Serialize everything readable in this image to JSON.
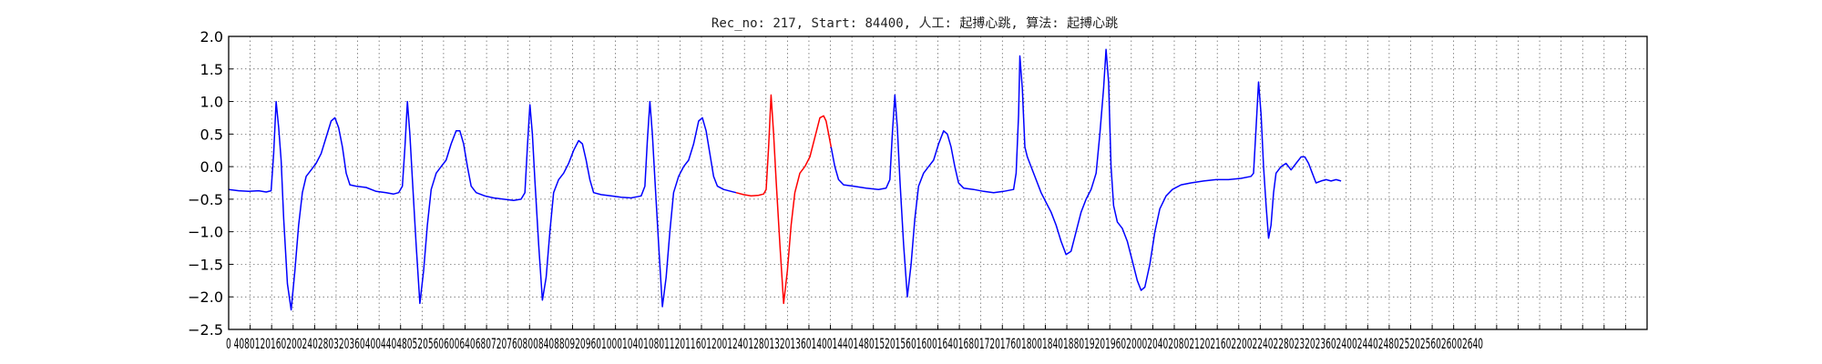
{
  "chart_data": {
    "type": "line",
    "title": "Rec_no: 217, Start: 84400, 人工: 起搏心跳, 算法: 起搏心跳",
    "xlabel": "",
    "ylabel": "",
    "xlim": [
      0,
      1000
    ],
    "ylim": [
      -2.5,
      2.0
    ],
    "grid": true,
    "y_ticks": [
      2.0,
      1.5,
      1.0,
      0.5,
      0.0,
      -0.5,
      -1.0,
      -1.5,
      -2.0,
      -2.5
    ],
    "y_tick_labels": [
      "2.0",
      "1.5",
      "1.0",
      "0.5",
      "0.0",
      "−0.5",
      "−1.0",
      "−1.5",
      "−2.0",
      "−2.5"
    ],
    "x_tick_labels_text": "0 4080120160200240280320360400440480520560600640680720760800840880920960100010401080112011601200124012801320136014001440148015201560160016401680172017601800184018801920196020002040208021202160220022402280232023602400244024802520256026002640",
    "x_tick_count": 67,
    "x_tick_step": 40,
    "series": [
      {
        "color": "#0000ff",
        "segment": "before",
        "points": [
          [
            0,
            -0.35
          ],
          [
            8,
            -0.37
          ],
          [
            16,
            -0.38
          ],
          [
            24,
            -0.37
          ],
          [
            30,
            -0.39
          ],
          [
            34,
            -0.37
          ],
          [
            36,
            0.2
          ],
          [
            38,
            1.0
          ],
          [
            40,
            0.6
          ],
          [
            42,
            0.1
          ],
          [
            44,
            -0.8
          ],
          [
            47,
            -1.8
          ],
          [
            50,
            -2.2
          ],
          [
            53,
            -1.6
          ],
          [
            56,
            -0.9
          ],
          [
            59,
            -0.4
          ],
          [
            62,
            -0.15
          ],
          [
            66,
            -0.05
          ],
          [
            70,
            0.05
          ],
          [
            74,
            0.2
          ],
          [
            78,
            0.45
          ],
          [
            82,
            0.7
          ],
          [
            85,
            0.75
          ],
          [
            88,
            0.6
          ],
          [
            91,
            0.3
          ],
          [
            94,
            -0.1
          ],
          [
            97,
            -0.28
          ],
          [
            102,
            -0.3
          ],
          [
            110,
            -0.32
          ],
          [
            118,
            -0.38
          ],
          [
            126,
            -0.4
          ],
          [
            132,
            -0.42
          ],
          [
            136,
            -0.4
          ],
          [
            139,
            -0.3
          ],
          [
            141,
            0.3
          ],
          [
            143,
            1.0
          ],
          [
            145,
            0.5
          ],
          [
            147,
            -0.2
          ],
          [
            150,
            -1.2
          ],
          [
            153,
            -2.1
          ],
          [
            156,
            -1.6
          ],
          [
            159,
            -0.9
          ],
          [
            162,
            -0.35
          ],
          [
            166,
            -0.1
          ],
          [
            170,
            0.0
          ],
          [
            174,
            0.1
          ],
          [
            178,
            0.35
          ],
          [
            182,
            0.55
          ],
          [
            185,
            0.55
          ],
          [
            188,
            0.35
          ],
          [
            191,
            0.0
          ],
          [
            194,
            -0.3
          ],
          [
            198,
            -0.4
          ],
          [
            205,
            -0.45
          ],
          [
            212,
            -0.48
          ],
          [
            220,
            -0.5
          ],
          [
            228,
            -0.52
          ],
          [
            234,
            -0.5
          ],
          [
            237,
            -0.4
          ],
          [
            239,
            0.3
          ],
          [
            241,
            0.95
          ],
          [
            243,
            0.5
          ],
          [
            245,
            -0.2
          ],
          [
            248,
            -1.2
          ],
          [
            251,
            -2.05
          ],
          [
            254,
            -1.7
          ],
          [
            257,
            -1.0
          ],
          [
            260,
            -0.4
          ],
          [
            264,
            -0.2
          ],
          [
            268,
            -0.1
          ],
          [
            272,
            0.05
          ],
          [
            276,
            0.25
          ],
          [
            280,
            0.4
          ],
          [
            283,
            0.35
          ],
          [
            286,
            0.1
          ],
          [
            289,
            -0.2
          ],
          [
            292,
            -0.4
          ],
          [
            298,
            -0.43
          ],
          [
            306,
            -0.45
          ],
          [
            314,
            -0.47
          ],
          [
            322,
            -0.48
          ],
          [
            330,
            -0.45
          ],
          [
            333,
            -0.3
          ],
          [
            335,
            0.4
          ],
          [
            337,
            1.0
          ],
          [
            339,
            0.5
          ],
          [
            341,
            -0.2
          ],
          [
            344,
            -1.2
          ],
          [
            347,
            -2.15
          ],
          [
            350,
            -1.7
          ],
          [
            353,
            -1.0
          ],
          [
            356,
            -0.4
          ],
          [
            360,
            -0.15
          ],
          [
            364,
            0.0
          ],
          [
            368,
            0.1
          ],
          [
            372,
            0.35
          ],
          [
            376,
            0.7
          ],
          [
            379,
            0.75
          ],
          [
            382,
            0.55
          ],
          [
            385,
            0.2
          ],
          [
            388,
            -0.15
          ],
          [
            391,
            -0.3
          ],
          [
            396,
            -0.35
          ],
          [
            402,
            -0.38
          ],
          [
            406,
            -0.4
          ]
        ]
      },
      {
        "color": "#ff0000",
        "segment": "annotated_beat",
        "points": [
          [
            406,
            -0.4
          ],
          [
            412,
            -0.43
          ],
          [
            418,
            -0.45
          ],
          [
            424,
            -0.44
          ],
          [
            428,
            -0.42
          ],
          [
            430,
            -0.35
          ],
          [
            432,
            0.3
          ],
          [
            434,
            1.1
          ],
          [
            436,
            0.5
          ],
          [
            438,
            -0.2
          ],
          [
            441,
            -1.2
          ],
          [
            444,
            -2.1
          ],
          [
            447,
            -1.6
          ],
          [
            450,
            -0.9
          ],
          [
            453,
            -0.4
          ],
          [
            457,
            -0.1
          ],
          [
            461,
            0.0
          ],
          [
            465,
            0.15
          ],
          [
            469,
            0.45
          ],
          [
            473,
            0.75
          ],
          [
            476,
            0.78
          ],
          [
            478,
            0.7
          ],
          [
            480,
            0.5
          ],
          [
            482,
            0.3
          ]
        ]
      },
      {
        "color": "#0000ff",
        "segment": "after",
        "points": [
          [
            482,
            0.3
          ],
          [
            485,
            0.0
          ],
          [
            488,
            -0.2
          ],
          [
            492,
            -0.28
          ],
          [
            500,
            -0.3
          ],
          [
            510,
            -0.33
          ],
          [
            520,
            -0.35
          ],
          [
            526,
            -0.33
          ],
          [
            529,
            -0.2
          ],
          [
            531,
            0.5
          ],
          [
            533,
            1.1
          ],
          [
            535,
            0.6
          ],
          [
            537,
            -0.2
          ],
          [
            540,
            -1.2
          ],
          [
            543,
            -2.0
          ],
          [
            546,
            -1.5
          ],
          [
            549,
            -0.8
          ],
          [
            552,
            -0.3
          ],
          [
            556,
            -0.1
          ],
          [
            560,
            0.0
          ],
          [
            564,
            0.1
          ],
          [
            568,
            0.35
          ],
          [
            572,
            0.55
          ],
          [
            575,
            0.5
          ],
          [
            578,
            0.3
          ],
          [
            581,
            0.0
          ],
          [
            584,
            -0.25
          ],
          [
            588,
            -0.33
          ],
          [
            596,
            -0.35
          ],
          [
            604,
            -0.38
          ],
          [
            612,
            -0.4
          ],
          [
            620,
            -0.38
          ],
          [
            628,
            -0.35
          ],
          [
            630,
            -0.1
          ],
          [
            632,
            0.8
          ],
          [
            633,
            1.7
          ],
          [
            635,
            1.2
          ],
          [
            637,
            0.3
          ],
          [
            639,
            0.15
          ],
          [
            642,
            0.0
          ],
          [
            646,
            -0.2
          ],
          [
            650,
            -0.4
          ],
          [
            654,
            -0.55
          ],
          [
            658,
            -0.7
          ],
          [
            662,
            -0.9
          ],
          [
            666,
            -1.15
          ],
          [
            670,
            -1.35
          ],
          [
            674,
            -1.3
          ],
          [
            678,
            -1.0
          ],
          [
            682,
            -0.7
          ],
          [
            686,
            -0.5
          ],
          [
            690,
            -0.35
          ],
          [
            694,
            -0.1
          ],
          [
            697,
            0.5
          ],
          [
            700,
            1.2
          ],
          [
            702,
            1.8
          ],
          [
            704,
            1.3
          ],
          [
            706,
            0.0
          ],
          [
            708,
            -0.6
          ],
          [
            711,
            -0.85
          ],
          [
            715,
            -0.95
          ],
          [
            719,
            -1.15
          ],
          [
            723,
            -1.45
          ],
          [
            727,
            -1.75
          ],
          [
            730,
            -1.9
          ],
          [
            733,
            -1.85
          ],
          [
            737,
            -1.5
          ],
          [
            741,
            -1.0
          ],
          [
            745,
            -0.65
          ],
          [
            750,
            -0.45
          ],
          [
            755,
            -0.35
          ],
          [
            762,
            -0.28
          ],
          [
            770,
            -0.25
          ],
          [
            780,
            -0.22
          ],
          [
            790,
            -0.2
          ],
          [
            800,
            -0.2
          ],
          [
            810,
            -0.18
          ],
          [
            818,
            -0.15
          ],
          [
            820,
            -0.1
          ],
          [
            822,
            0.6
          ],
          [
            824,
            1.3
          ],
          [
            826,
            0.8
          ],
          [
            828,
            0.0
          ],
          [
            830,
            -0.6
          ],
          [
            832,
            -1.1
          ],
          [
            834,
            -0.9
          ],
          [
            836,
            -0.4
          ],
          [
            838,
            -0.1
          ],
          [
            842,
            0.0
          ],
          [
            846,
            0.05
          ],
          [
            850,
            -0.05
          ],
          [
            854,
            0.05
          ],
          [
            858,
            0.15
          ],
          [
            861,
            0.15
          ],
          [
            864,
            0.05
          ],
          [
            867,
            -0.1
          ],
          [
            870,
            -0.25
          ],
          [
            874,
            -0.22
          ],
          [
            878,
            -0.2
          ],
          [
            882,
            -0.22
          ],
          [
            886,
            -0.2
          ],
          [
            890,
            -0.22
          ]
        ]
      }
    ]
  }
}
